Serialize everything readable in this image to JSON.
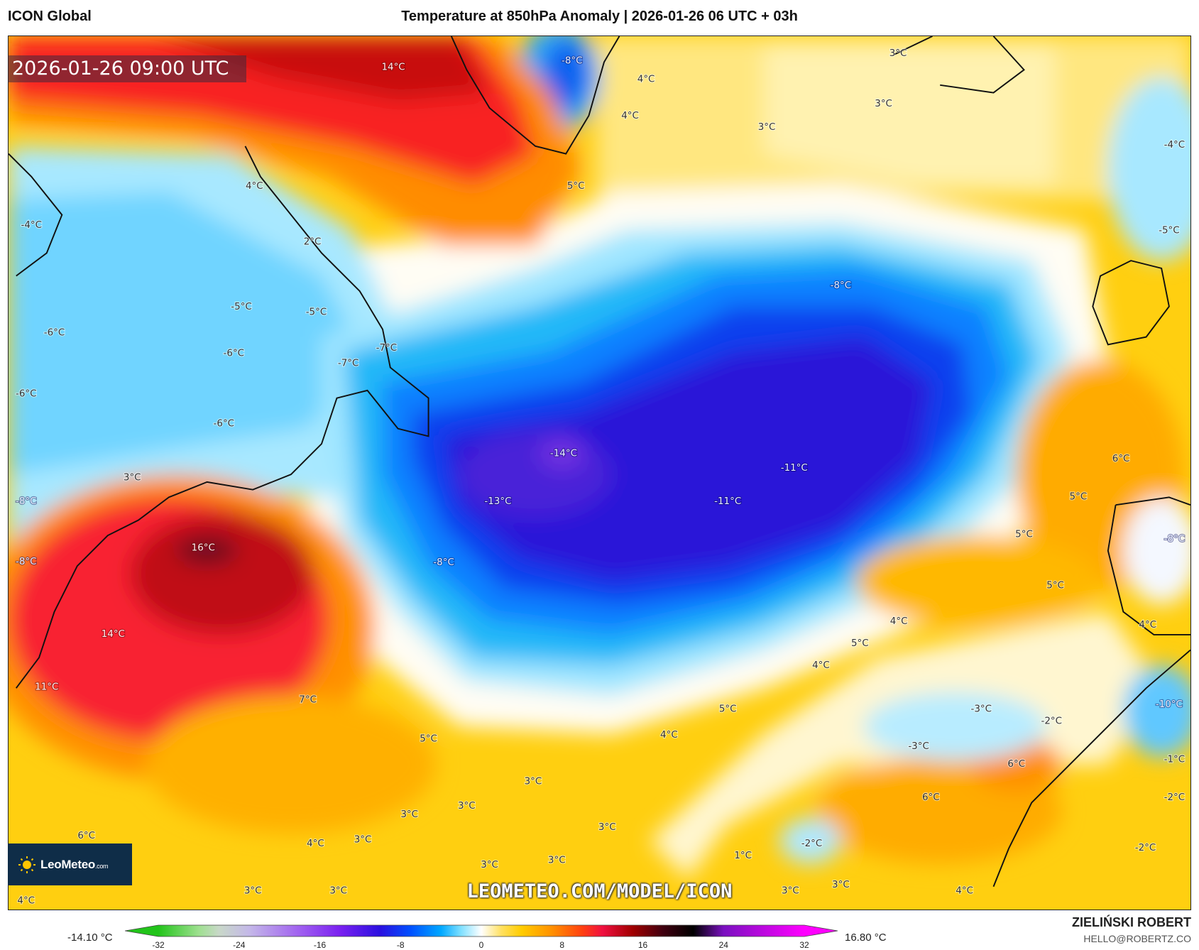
{
  "header": {
    "model": "ICON Global",
    "title": "Temperature at 850hPa Anomaly | 2026-01-26 06 UTC + 03h"
  },
  "map": {
    "valid_time": "2026-01-26 09:00 UTC",
    "watermark": "LEOMETEO.COM/MODEL/ICON",
    "logo": {
      "name": "LeoMeteo",
      "suffix": ".com"
    },
    "labels": [
      "14°C",
      "-8°C",
      "3°C",
      "4°C",
      "4°C",
      "3°C",
      "3°C",
      "-4°C",
      "5°C",
      "4°C",
      "-4°C",
      "2°C",
      "-5°C",
      "-8°C",
      "-5°C",
      "-5°C",
      "-6°C",
      "-6°C",
      "-7°C",
      "-7°C",
      "-6°C",
      "-6°C",
      "-14°C",
      "6°C",
      "-11°C",
      "3°C",
      "-8°C",
      "-13°C",
      "-11°C",
      "5°C",
      "16°C",
      "5°C",
      "-8°C",
      "-8°C",
      "-8°C",
      "5°C",
      "4°C",
      "14°C",
      "4°C",
      "5°C",
      "4°C",
      "11°C",
      "7°C",
      "-10°C",
      "5°C",
      "-3°C",
      "-2°C",
      "4°C",
      "5°C",
      "-3°C",
      "-1°C",
      "6°C",
      "3°C",
      "-2°C",
      "6°C",
      "3°C",
      "3°C",
      "3°C",
      "6°C",
      "4°C",
      "3°C",
      "-2°C",
      "-2°C",
      "1°C",
      "3°C",
      "3°C",
      "3°C",
      "3°C",
      "3°C",
      "3°C",
      "4°C",
      "4°C"
    ]
  },
  "colorbar": {
    "min_value": "-14.10 °C",
    "max_value": "16.80 °C",
    "ticks": [
      "-32",
      "-24",
      "-16",
      "-8",
      "0",
      "8",
      "16",
      "24",
      "32"
    ],
    "range": [
      -32,
      32
    ],
    "stops": [
      {
        "v": -32,
        "c": "#22c41a"
      },
      {
        "v": -28,
        "c": "#9ee08f"
      },
      {
        "v": -26,
        "c": "#c8d8c8"
      },
      {
        "v": -23,
        "c": "#c4b8e8"
      },
      {
        "v": -18,
        "c": "#a060f0"
      },
      {
        "v": -14,
        "c": "#7a20f0"
      },
      {
        "v": -10,
        "c": "#2a10e0"
      },
      {
        "v": -7,
        "c": "#0050ff"
      },
      {
        "v": -4,
        "c": "#00a8ff"
      },
      {
        "v": -2,
        "c": "#80e0ff"
      },
      {
        "v": 0,
        "c": "#ffffff"
      },
      {
        "v": 2,
        "c": "#ffe060"
      },
      {
        "v": 4,
        "c": "#ffcc00"
      },
      {
        "v": 7,
        "c": "#ff9000"
      },
      {
        "v": 10,
        "c": "#ff4010"
      },
      {
        "v": 12,
        "c": "#f01040"
      },
      {
        "v": 15,
        "c": "#a00000"
      },
      {
        "v": 18,
        "c": "#400010"
      },
      {
        "v": 21,
        "c": "#000000"
      },
      {
        "v": 24,
        "c": "#7a10c0"
      },
      {
        "v": 32,
        "c": "#ff00ff"
      }
    ]
  },
  "credits": {
    "author": "ZIELIŃSKI ROBERT",
    "email": "HELLO@ROBERTZ.CO"
  }
}
